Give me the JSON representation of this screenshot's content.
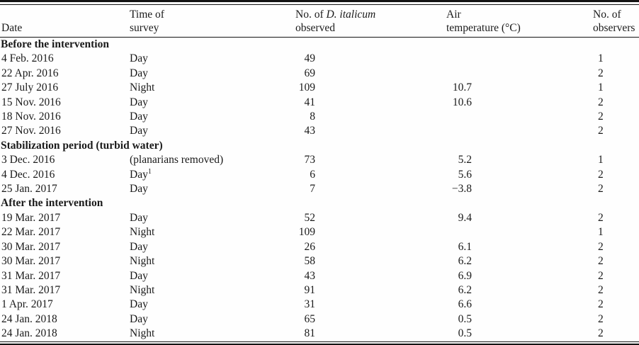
{
  "page": {
    "background": "#fefefe",
    "text_color": "#1a1a1a",
    "rule_color": "#141414"
  },
  "table": {
    "headers": {
      "date": "Date",
      "time_line1": "Time of",
      "time_line2": "survey",
      "observed_prefix": "No. of ",
      "observed_species": "D. italicum",
      "observed_line2": "observed",
      "temp_line1": "Air",
      "temp_line2": "temperature (°C)",
      "observers_line1": "No. of",
      "observers_line2": "observers"
    },
    "rows": [
      {
        "type": "section",
        "label": "Before the intervention"
      },
      {
        "type": "data",
        "date": "4 Feb. 2016",
        "time": "Day",
        "observed": "49",
        "temp": "",
        "observers": "1"
      },
      {
        "type": "data",
        "date": "22 Apr. 2016",
        "time": "Day",
        "observed": "69",
        "temp": "",
        "observers": "2"
      },
      {
        "type": "data",
        "date": "27 July 2016",
        "time": "Night",
        "observed": "109",
        "temp": "10.7",
        "observers": "1"
      },
      {
        "type": "data",
        "date": "15 Nov. 2016",
        "time": "Day",
        "observed": "41",
        "temp": "10.6",
        "observers": "2"
      },
      {
        "type": "data",
        "date": "18 Nov. 2016",
        "time": "Day",
        "observed": "8",
        "temp": "",
        "observers": "2"
      },
      {
        "type": "data",
        "date": "27 Nov. 2016",
        "time": "Day",
        "observed": "43",
        "temp": "",
        "observers": "2"
      },
      {
        "type": "section",
        "label": "Stabilization period (turbid water)"
      },
      {
        "type": "data",
        "date": "3 Dec. 2016",
        "time": "(planarians removed)",
        "observed": "73",
        "temp": "5.2",
        "observers": "1"
      },
      {
        "type": "data",
        "date": "4 Dec. 2016",
        "time": "Day",
        "time_sup": "1",
        "observed": "6",
        "temp": "5.6",
        "observers": "2"
      },
      {
        "type": "data",
        "date": "25 Jan. 2017",
        "time": "Day",
        "observed": "7",
        "temp": "−3.8",
        "observers": "2"
      },
      {
        "type": "section",
        "label": "After the intervention"
      },
      {
        "type": "data",
        "date": "19 Mar. 2017",
        "time": "Day",
        "observed": "52",
        "temp": "9.4",
        "observers": "2"
      },
      {
        "type": "data",
        "date": "22 Mar. 2017",
        "time": "Night",
        "observed": "109",
        "temp": "",
        "observers": "1"
      },
      {
        "type": "data",
        "date": "30 Mar. 2017",
        "time": "Day",
        "observed": "26",
        "temp": "6.1",
        "observers": "2"
      },
      {
        "type": "data",
        "date": "30 Mar. 2017",
        "time": "Night",
        "observed": "58",
        "temp": "6.2",
        "observers": "2"
      },
      {
        "type": "data",
        "date": "31 Mar. 2017",
        "time": "Day",
        "observed": "43",
        "temp": "6.9",
        "observers": "2"
      },
      {
        "type": "data",
        "date": "31 Mar. 2017",
        "time": "Night",
        "observed": "91",
        "temp": "6.2",
        "observers": "2"
      },
      {
        "type": "data",
        "date": "1 Apr. 2017",
        "time": "Day",
        "observed": "31",
        "temp": "6.6",
        "observers": "2"
      },
      {
        "type": "data",
        "date": "24 Jan. 2018",
        "time": "Day",
        "observed": "65",
        "temp": "0.5",
        "observers": "2"
      },
      {
        "type": "data",
        "date": "24 Jan. 2018",
        "time": "Night",
        "observed": "81",
        "temp": "0.5",
        "observers": "2"
      }
    ]
  }
}
